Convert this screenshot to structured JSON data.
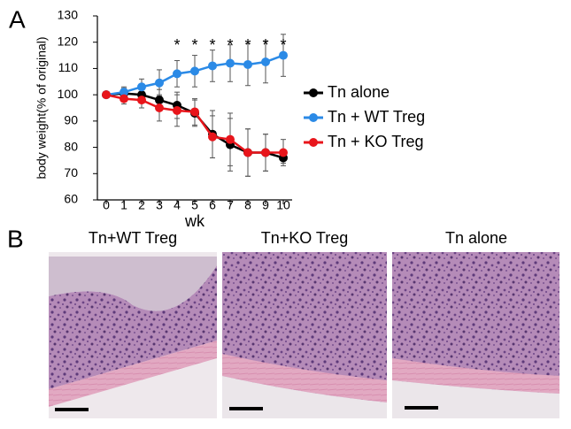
{
  "chart_data": {
    "type": "line",
    "y_label": "body weight(% of original)",
    "x_label": "wk",
    "x": [
      0,
      1,
      2,
      3,
      4,
      5,
      6,
      7,
      8,
      9,
      10
    ],
    "xlim": [
      -0.5,
      10.5
    ],
    "xticks": [
      0,
      1,
      2,
      3,
      4,
      5,
      6,
      7,
      8,
      9,
      10
    ],
    "ylim": [
      60,
      130
    ],
    "yticks": [
      60,
      70,
      80,
      90,
      100,
      110,
      120,
      130
    ],
    "legend": "right",
    "series": [
      {
        "name": "Tn alone",
        "color": "#000000",
        "values": [
          100,
          100.5,
          100,
          98,
          96,
          93,
          85,
          81,
          78,
          78,
          76
        ],
        "errors": [
          0,
          2,
          3,
          4,
          5,
          5,
          9,
          10,
          9,
          7,
          2
        ]
      },
      {
        "name": "Tn + WT Treg",
        "color": "#2b8ae6",
        "values": [
          100,
          101,
          103,
          104.5,
          108,
          109,
          111,
          112,
          111.5,
          112.5,
          115
        ],
        "errors": [
          0,
          2,
          3,
          5,
          5,
          6,
          6,
          7,
          8,
          8,
          8
        ]
      },
      {
        "name": "Tn + KO Treg",
        "color": "#e8151b",
        "values": [
          100,
          98.5,
          98,
          95,
          94,
          93.5,
          84,
          83,
          78,
          78,
          78
        ],
        "errors": [
          0,
          2,
          3,
          5,
          6,
          5,
          8,
          10,
          9,
          7,
          5
        ]
      }
    ],
    "annotations": [
      {
        "text": "*",
        "x": 4
      },
      {
        "text": "*",
        "x": 5
      },
      {
        "text": "*",
        "x": 6
      },
      {
        "text": "*",
        "x": 7
      },
      {
        "text": "*",
        "x": 8
      },
      {
        "text": "*",
        "x": 9
      },
      {
        "text": "*",
        "x": 10
      }
    ]
  },
  "panel_labels": [
    "A",
    "B"
  ],
  "images": [
    {
      "title": "Tn+WT Treg"
    },
    {
      "title": "Tn+KO Treg"
    },
    {
      "title": "Tn alone"
    }
  ]
}
